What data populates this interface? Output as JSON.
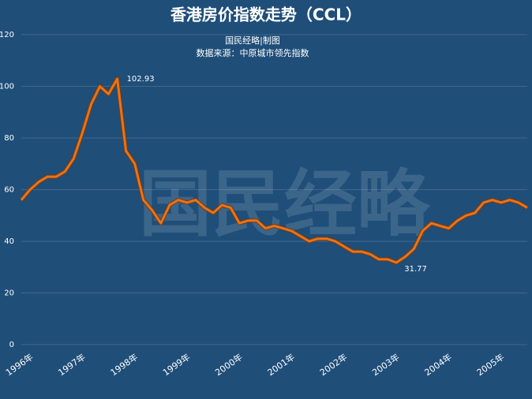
{
  "chart_data": {
    "type": "line",
    "title": "香港房价指数走势（CCL）",
    "subtitle": [
      "国民经略|制图",
      "数据来源：中原城市领先指数"
    ],
    "watermark": "国民经略",
    "categories": [
      "1996年",
      null,
      null,
      null,
      null,
      null,
      "1997年",
      null,
      null,
      null,
      null,
      null,
      "1998年",
      null,
      null,
      null,
      null,
      null,
      "1999年",
      null,
      null,
      null,
      null,
      null,
      "2000年",
      null,
      null,
      null,
      null,
      null,
      "2001年",
      null,
      null,
      null,
      null,
      null,
      "2002年",
      null,
      null,
      null,
      null,
      null,
      "2003年",
      null,
      null,
      null,
      null,
      null,
      "2004年",
      null,
      null,
      null,
      null,
      null,
      "2005年",
      null,
      null,
      null,
      null
    ],
    "series": [
      {
        "name": "CCL",
        "color": "#e8731c",
        "values": [
          56,
          60,
          63,
          65,
          65,
          67,
          72,
          82,
          93,
          100,
          97,
          102.93,
          75,
          70,
          56,
          52,
          47,
          54,
          56,
          55,
          56,
          53,
          51,
          54,
          53,
          47,
          48,
          48,
          45,
          46,
          45,
          44,
          42,
          40,
          41,
          41,
          40,
          38,
          36,
          36,
          35,
          33,
          33,
          31.77,
          34,
          37,
          44,
          47,
          46,
          45,
          48,
          50,
          51,
          55,
          56,
          55,
          56,
          55,
          53
        ]
      }
    ],
    "label_max": true,
    "label_min": true,
    "ylim": [
      0,
      120
    ],
    "yticks": [
      0,
      20,
      40,
      60,
      80,
      100,
      120
    ],
    "grid": true
  }
}
